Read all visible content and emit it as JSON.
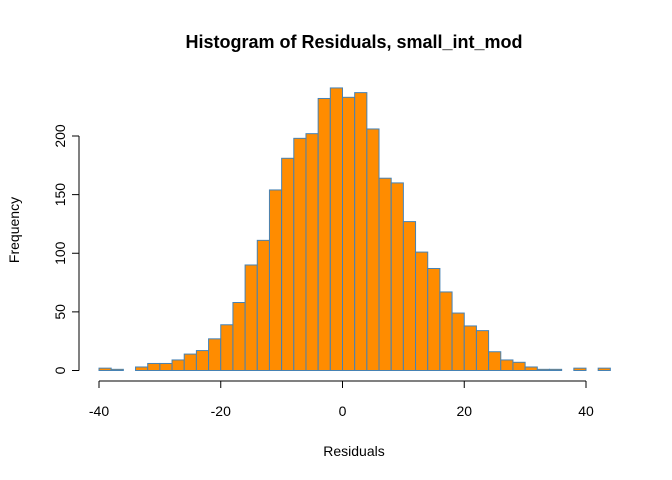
{
  "chart_data": {
    "type": "bar",
    "title": "Histogram of Residuals, small_int_mod",
    "xlabel": "Residuals",
    "ylabel": "Frequency",
    "bin_width": 2,
    "bins": [
      {
        "x0": -40,
        "x1": -38,
        "count": 2
      },
      {
        "x0": -38,
        "x1": -36,
        "count": 1
      },
      {
        "x0": -36,
        "x1": -34,
        "count": 0
      },
      {
        "x0": -34,
        "x1": -32,
        "count": 3
      },
      {
        "x0": -32,
        "x1": -30,
        "count": 6
      },
      {
        "x0": -30,
        "x1": -28,
        "count": 6
      },
      {
        "x0": -28,
        "x1": -26,
        "count": 9
      },
      {
        "x0": -26,
        "x1": -24,
        "count": 14
      },
      {
        "x0": -24,
        "x1": -22,
        "count": 17
      },
      {
        "x0": -22,
        "x1": -20,
        "count": 27
      },
      {
        "x0": -20,
        "x1": -18,
        "count": 39
      },
      {
        "x0": -18,
        "x1": -16,
        "count": 58
      },
      {
        "x0": -16,
        "x1": -14,
        "count": 90
      },
      {
        "x0": -14,
        "x1": -12,
        "count": 111
      },
      {
        "x0": -12,
        "x1": -10,
        "count": 154
      },
      {
        "x0": -10,
        "x1": -8,
        "count": 181
      },
      {
        "x0": -8,
        "x1": -6,
        "count": 198
      },
      {
        "x0": -6,
        "x1": -4,
        "count": 202
      },
      {
        "x0": -4,
        "x1": -2,
        "count": 232
      },
      {
        "x0": -2,
        "x1": 0,
        "count": 241
      },
      {
        "x0": 0,
        "x1": 2,
        "count": 233
      },
      {
        "x0": 2,
        "x1": 4,
        "count": 237
      },
      {
        "x0": 4,
        "x1": 6,
        "count": 206
      },
      {
        "x0": 6,
        "x1": 8,
        "count": 164
      },
      {
        "x0": 8,
        "x1": 10,
        "count": 160
      },
      {
        "x0": 10,
        "x1": 12,
        "count": 127
      },
      {
        "x0": 12,
        "x1": 14,
        "count": 101
      },
      {
        "x0": 14,
        "x1": 16,
        "count": 87
      },
      {
        "x0": 16,
        "x1": 18,
        "count": 67
      },
      {
        "x0": 18,
        "x1": 20,
        "count": 49
      },
      {
        "x0": 20,
        "x1": 22,
        "count": 38
      },
      {
        "x0": 22,
        "x1": 24,
        "count": 34
      },
      {
        "x0": 24,
        "x1": 26,
        "count": 16
      },
      {
        "x0": 26,
        "x1": 28,
        "count": 9
      },
      {
        "x0": 28,
        "x1": 30,
        "count": 7
      },
      {
        "x0": 30,
        "x1": 32,
        "count": 3
      },
      {
        "x0": 32,
        "x1": 34,
        "count": 1
      },
      {
        "x0": 34,
        "x1": 36,
        "count": 1
      },
      {
        "x0": 36,
        "x1": 38,
        "count": 0
      },
      {
        "x0": 38,
        "x1": 40,
        "count": 2
      },
      {
        "x0": 40,
        "x1": 42,
        "count": 0
      },
      {
        "x0": 42,
        "x1": 44,
        "count": 2
      }
    ],
    "x_ticks": [
      -40,
      -20,
      0,
      20,
      40
    ],
    "y_ticks": [
      0,
      50,
      100,
      150,
      200
    ],
    "xlim": [
      -40,
      44
    ],
    "ylim": [
      0,
      241
    ],
    "grid": false,
    "legend": "none",
    "colors": {
      "bar_fill": "#FF8C00",
      "bar_border": "#4682B4",
      "axis": "#000000"
    }
  }
}
